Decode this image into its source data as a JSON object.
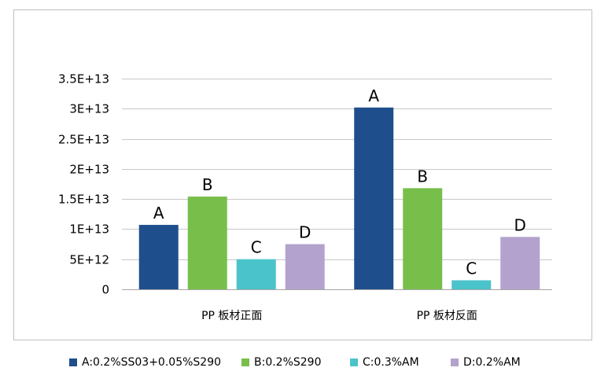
{
  "chart_data": {
    "type": "bar",
    "categories": [
      "PP 板材正面",
      "PP 板材反面"
    ],
    "series": [
      {
        "name": "A:0.2%SS03+0.05%S290",
        "short": "A",
        "color": "#1f4e8c",
        "values": [
          10700000000000.0,
          30200000000000.0
        ]
      },
      {
        "name": "B:0.2%S290",
        "short": "B",
        "color": "#77bf4a",
        "values": [
          15400000000000.0,
          16800000000000.0
        ]
      },
      {
        "name": "C:0.3%AM",
        "short": "C",
        "color": "#4bc3cb",
        "values": [
          5000000000000.0,
          1500000000000.0
        ]
      },
      {
        "name": "D:0.2%AM",
        "short": "D",
        "color": "#b3a2cd",
        "values": [
          7500000000000.0,
          8700000000000.0
        ]
      }
    ],
    "ylim": [
      0,
      35000000000000.0
    ],
    "yticks": [
      0,
      5000000000000.0,
      10000000000000.0,
      15000000000000.0,
      20000000000000.0,
      25000000000000.0,
      30000000000000.0,
      35000000000000.0
    ],
    "ytick_labels": [
      "0",
      "5E+12",
      "1E+13",
      "1.5E+13",
      "2E+13",
      "2.5E+13",
      "3E+13",
      "3.5E+13"
    ],
    "grid": true,
    "legend_position": "bottom",
    "title": "",
    "xlabel": "",
    "ylabel": ""
  }
}
